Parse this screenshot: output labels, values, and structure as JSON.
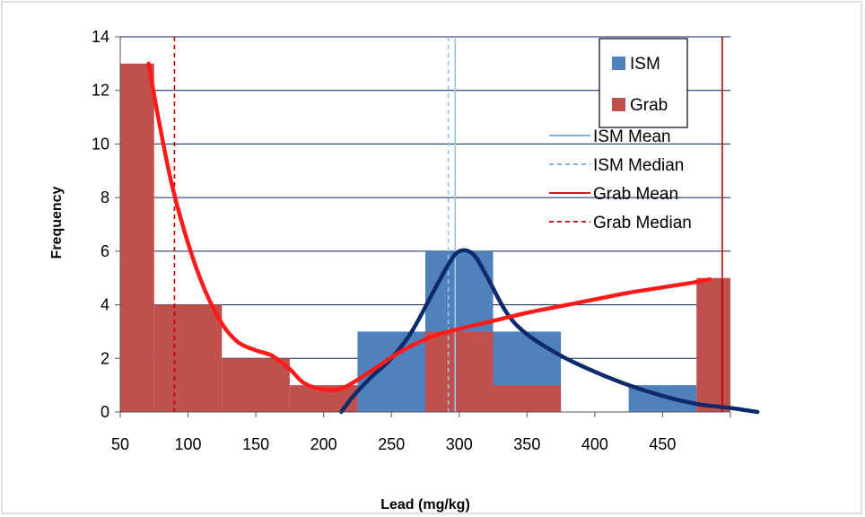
{
  "chart_data": {
    "type": "bar",
    "xlabel": "Lead (mg/kg)",
    "ylabel": "Frequency",
    "xlim": [
      50,
      500
    ],
    "ylim": [
      0,
      14
    ],
    "x_ticks": [
      "50",
      "100",
      "150",
      "200",
      "250",
      "300",
      "350",
      "400",
      "450"
    ],
    "y_ticks": [
      "0",
      "2",
      "4",
      "6",
      "8",
      "10",
      "12",
      "14"
    ],
    "grid": "horizontal",
    "legend_position": "top-right",
    "bin_width": 50,
    "series": [
      {
        "name": "ISM",
        "type": "histogram",
        "color": "#4f81bd",
        "bins": [
          {
            "start": 225,
            "end": 275,
            "count": 3
          },
          {
            "start": 275,
            "end": 325,
            "count": 6
          },
          {
            "start": 325,
            "end": 375,
            "count": 3
          },
          {
            "start": 425,
            "end": 475,
            "count": 1
          }
        ]
      },
      {
        "name": "Grab",
        "type": "histogram",
        "color": "#c0504d",
        "bins": [
          {
            "start": 50,
            "end": 75,
            "count": 13
          },
          {
            "start": 75,
            "end": 125,
            "count": 4
          },
          {
            "start": 125,
            "end": 175,
            "count": 2
          },
          {
            "start": 175,
            "end": 225,
            "count": 1
          },
          {
            "start": 275,
            "end": 325,
            "count": 3
          },
          {
            "start": 325,
            "end": 375,
            "count": 1
          },
          {
            "start": 475,
            "end": 500,
            "count": 5
          }
        ]
      }
    ],
    "curves": [
      {
        "id": "ism-curve",
        "color": "#0e2a6b",
        "points": [
          [
            213,
            0
          ],
          [
            222,
            0.6
          ],
          [
            235,
            1.3
          ],
          [
            250,
            2.0
          ],
          [
            265,
            3.0
          ],
          [
            280,
            4.4
          ],
          [
            292,
            5.5
          ],
          [
            300,
            6.0
          ],
          [
            310,
            5.9
          ],
          [
            320,
            5.1
          ],
          [
            335,
            3.7
          ],
          [
            350,
            2.9
          ],
          [
            375,
            2.1
          ],
          [
            400,
            1.5
          ],
          [
            425,
            1.0
          ],
          [
            450,
            0.6
          ],
          [
            475,
            0.3
          ],
          [
            500,
            0.15
          ],
          [
            520,
            0
          ]
        ]
      },
      {
        "id": "grab-curve",
        "color": "#ff1a1a",
        "points": [
          [
            71,
            13
          ],
          [
            78,
            11
          ],
          [
            88,
            8.5
          ],
          [
            100,
            6.3
          ],
          [
            112,
            4.6
          ],
          [
            125,
            3.3
          ],
          [
            137,
            2.6
          ],
          [
            150,
            2.3
          ],
          [
            162,
            2.1
          ],
          [
            175,
            1.6
          ],
          [
            185,
            1.1
          ],
          [
            198,
            0.85
          ],
          [
            212,
            0.85
          ],
          [
            225,
            1.2
          ],
          [
            240,
            1.7
          ],
          [
            255,
            2.2
          ],
          [
            270,
            2.6
          ],
          [
            285,
            2.9
          ],
          [
            300,
            3.1
          ],
          [
            325,
            3.4
          ],
          [
            350,
            3.7
          ],
          [
            375,
            3.95
          ],
          [
            400,
            4.2
          ],
          [
            425,
            4.45
          ],
          [
            450,
            4.65
          ],
          [
            475,
            4.85
          ],
          [
            485,
            4.95
          ]
        ]
      }
    ],
    "reference_lines": [
      {
        "name": "ISM Mean",
        "x": 297,
        "color": "#9dc3e6",
        "dash": "solid"
      },
      {
        "name": "ISM Median",
        "x": 292,
        "color": "#9dc3e6",
        "dash": "dashed"
      },
      {
        "name": "Grab Mean",
        "x": 494,
        "color": "#c00000",
        "dash": "solid"
      },
      {
        "name": "Grab Median",
        "x": 90,
        "color": "#c00000",
        "dash": "dashed"
      }
    ],
    "legend": {
      "box_entries": [
        {
          "label": "ISM",
          "color": "#4f81bd"
        },
        {
          "label": "Grab",
          "color": "#c0504d"
        }
      ],
      "line_entries": [
        {
          "label": "ISM Mean",
          "color": "#6fa8dc",
          "dash": "solid"
        },
        {
          "label": "ISM Median",
          "color": "#6fa8dc",
          "dash": "dashed"
        },
        {
          "label": "Grab Mean",
          "color": "#c00000",
          "dash": "solid"
        },
        {
          "label": "Grab Median",
          "color": "#c00000",
          "dash": "dashed"
        }
      ]
    }
  }
}
